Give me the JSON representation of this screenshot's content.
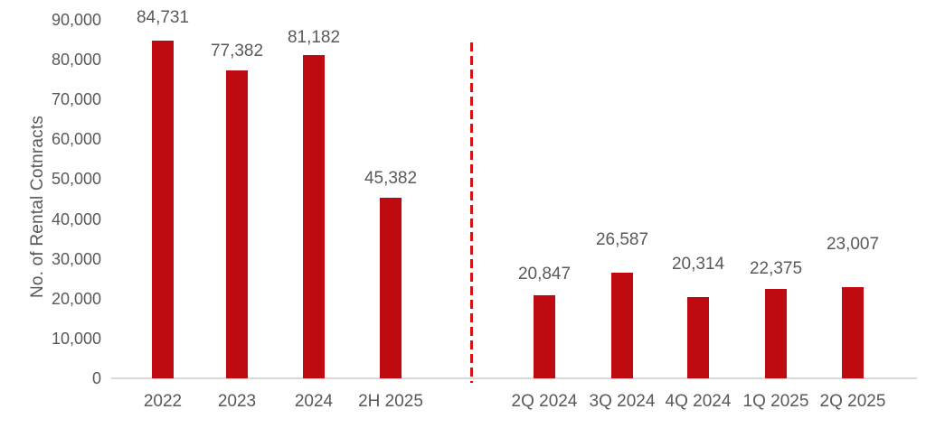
{
  "chart_data": {
    "type": "bar",
    "title": "",
    "xlabel": "",
    "ylabel": "No. of Rental Cotnracts",
    "ylim": [
      0,
      90000
    ],
    "ytick_step": 10000,
    "yticks_top_down": [
      "90,000",
      "80,000",
      "70,000",
      "60,000",
      "50,000",
      "40,000",
      "30,000",
      "20,000",
      "10,000",
      "0"
    ],
    "grid": false,
    "legend": false,
    "groups": [
      {
        "name": "annual",
        "categories": [
          "2022",
          "2023",
          "2024",
          "2H 2025"
        ],
        "values": [
          84731,
          77382,
          81182,
          45382
        ],
        "value_labels": [
          "84,731",
          "77,382",
          "81,182",
          "45,382"
        ]
      },
      {
        "name": "quarterly",
        "categories": [
          "2Q 2024",
          "3Q 2024",
          "4Q 2024",
          "1Q 2025",
          "2Q 2025"
        ],
        "values": [
          20847,
          26587,
          20314,
          22375,
          23007
        ],
        "value_labels": [
          "20,847",
          "26,587",
          "20,314",
          "22,375",
          "23,007"
        ]
      }
    ],
    "separator": {
      "orientation": "vertical",
      "style": "dashed",
      "color": "#D01515"
    },
    "colors": {
      "bar": "#C00A11",
      "axis_line": "#D9D9D9",
      "tick_label": "#595959",
      "data_label": "#595959",
      "axis_title": "#595959"
    }
  }
}
